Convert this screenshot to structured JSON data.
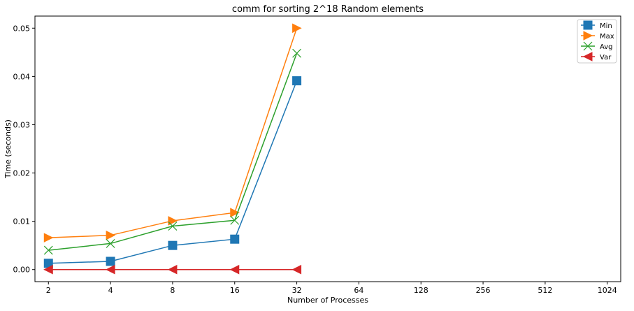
{
  "chart_data": {
    "type": "line",
    "title": "comm for sorting 2^18 Random elements",
    "xlabel": "Number of Processes",
    "ylabel": "Time (seconds)",
    "x_scale": "log2",
    "x_ticks": [
      2,
      4,
      8,
      16,
      32,
      64,
      128,
      256,
      512,
      1024
    ],
    "x_tick_labels": [
      "2",
      "4",
      "8",
      "16",
      "32",
      "64",
      "128",
      "256",
      "512",
      "1024"
    ],
    "xlim": [
      2,
      1024
    ],
    "ylim": [
      -0.0025,
      0.0525
    ],
    "y_ticks": [
      0.0,
      0.01,
      0.02,
      0.03,
      0.04,
      0.05
    ],
    "y_tick_labels": [
      "0.00",
      "0.01",
      "0.02",
      "0.03",
      "0.04",
      "0.05"
    ],
    "grid": false,
    "legend_position": "top-right",
    "x": [
      2,
      4,
      8,
      16,
      32
    ],
    "series": [
      {
        "name": "Min",
        "marker": "square",
        "color": "#1f77b4",
        "values": [
          0.0013,
          0.0017,
          0.005,
          0.0063,
          0.0391
        ]
      },
      {
        "name": "Max",
        "marker": "triangle-right",
        "color": "#ff7f0e",
        "values": [
          0.0066,
          0.0071,
          0.0101,
          0.0118,
          0.05
        ]
      },
      {
        "name": "Avg",
        "marker": "x",
        "color": "#2ca02c",
        "values": [
          0.004,
          0.0054,
          0.009,
          0.0102,
          0.0448
        ]
      },
      {
        "name": "Var",
        "marker": "triangle-left",
        "color": "#d62728",
        "values": [
          0.0,
          0.0,
          0.0,
          0.0,
          0.0
        ]
      }
    ]
  }
}
